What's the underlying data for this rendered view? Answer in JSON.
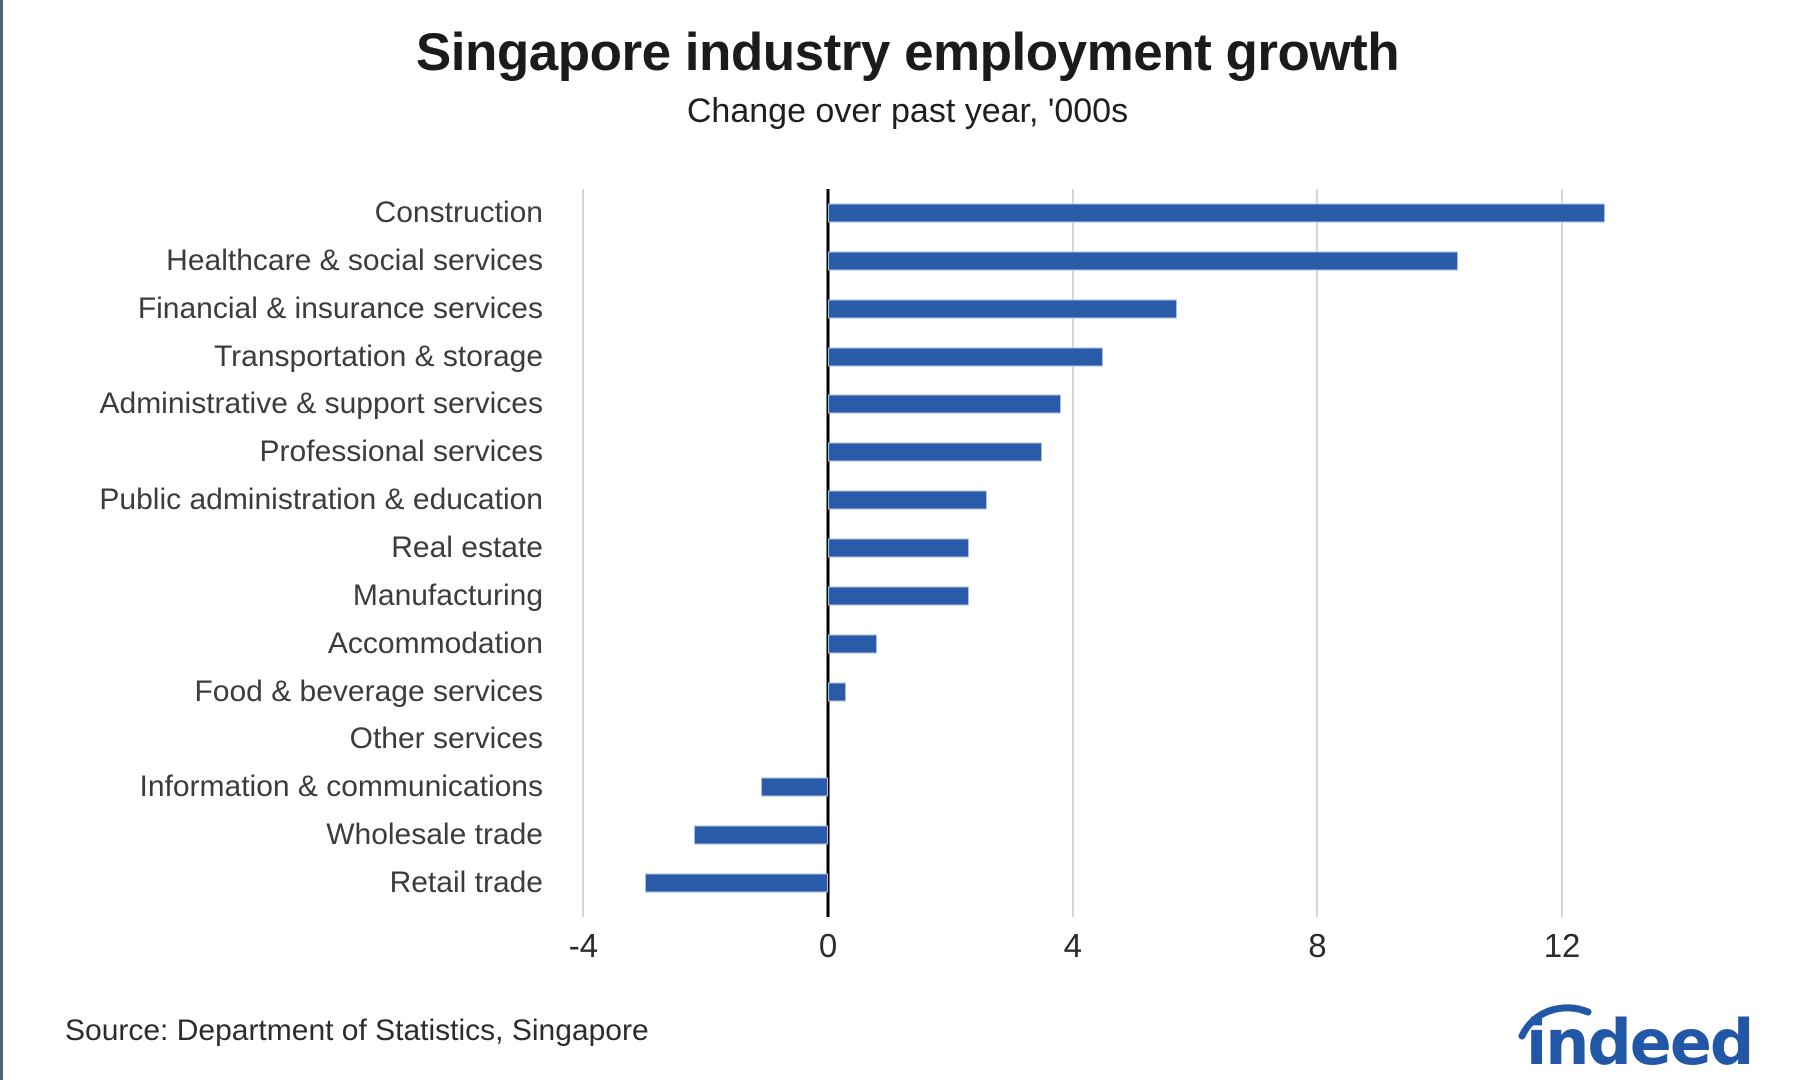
{
  "header": {
    "title": "Singapore industry employment growth",
    "subtitle": "Change over past year, '000s"
  },
  "source": {
    "note": "Source: Department of Statistics, Singapore"
  },
  "logo": {
    "brand": "indeed",
    "text": "indeed"
  },
  "colors": {
    "bar": "#2a5ba9",
    "bar_edge": "#a9c0e2",
    "zero_line": "#000000",
    "gridline": "#d6d6d6",
    "logo_blue": "#2257a8",
    "frame_left": "#4b6675"
  },
  "chart_data": {
    "type": "bar",
    "orientation": "horizontal",
    "title": "Singapore industry employment growth",
    "subtitle": "Change over past year, '000s",
    "xlabel": "",
    "ylabel": "",
    "unit": "thousands of persons, change over past year",
    "categories": [
      "Construction",
      "Healthcare & social services",
      "Financial & insurance services",
      "Transportation & storage",
      "Administrative & support services",
      "Professional services",
      "Public administration & education",
      "Real estate",
      "Manufacturing",
      "Accommodation",
      "Food & beverage services",
      "Other services",
      "Information & communications",
      "Wholesale trade",
      "Retail trade"
    ],
    "values": [
      12.7,
      10.3,
      5.7,
      4.5,
      3.8,
      3.5,
      2.6,
      2.3,
      2.3,
      0.8,
      0.3,
      0.0,
      -1.1,
      -2.2,
      -3.0
    ],
    "x_ticks": [
      -4,
      0,
      4,
      8,
      12
    ],
    "x_tick_labels": [
      "-4",
      "0",
      "4",
      "8",
      "12"
    ],
    "xlim": [
      -4.4,
      15.4
    ],
    "grid": true,
    "legend": false
  }
}
